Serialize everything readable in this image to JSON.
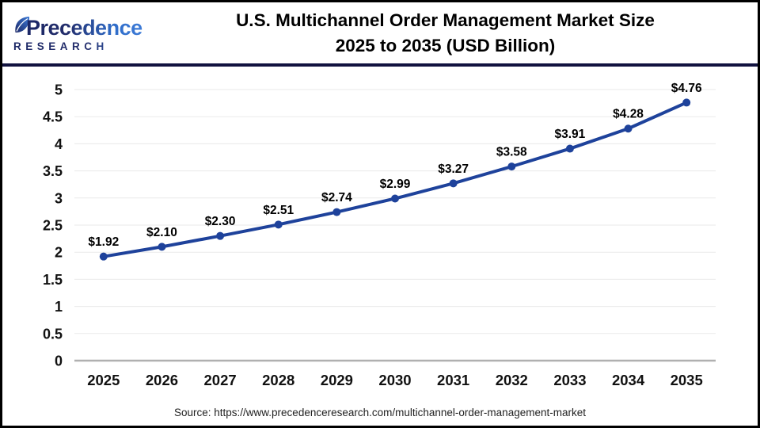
{
  "header": {
    "logo_line1": "Precedence",
    "logo_line2": "RESEARCH",
    "title_line1": "U.S. Multichannel Order Management Market Size",
    "title_line2": "2025 to 2035 (USD Billion)"
  },
  "chart_data": {
    "type": "line",
    "title": "U.S. Multichannel Order Management Market Size 2025 to 2035 (USD Billion)",
    "categories": [
      "2025",
      "2026",
      "2027",
      "2028",
      "2029",
      "2030",
      "2031",
      "2032",
      "2033",
      "2034",
      "2035"
    ],
    "values": [
      1.92,
      2.1,
      2.3,
      2.51,
      2.74,
      2.99,
      3.27,
      3.58,
      3.91,
      4.28,
      4.76
    ],
    "labels": [
      "$1.92",
      "$2.10",
      "$2.30",
      "$2.51",
      "$2.74",
      "$2.99",
      "$3.27",
      "$3.58",
      "$3.91",
      "$4.28",
      "$4.76"
    ],
    "unit": "USD Billion",
    "xlabel": "",
    "ylabel": "",
    "ylim": [
      0,
      5
    ],
    "ytick_step": 0.5,
    "grid": true,
    "legend": "none",
    "colors": {
      "line": "#1E429B",
      "marker": "#1E429B",
      "grid": "#EAEAEA",
      "axis": "#B0B0B0"
    }
  },
  "footer": {
    "source": "Source: https://www.precedenceresearch.com/multichannel-order-management-market"
  },
  "colors": {
    "divider": "#11123F",
    "logo_dark": "#1B2766",
    "logo_light": "#3D7BD7",
    "frame_border": "#000000"
  }
}
